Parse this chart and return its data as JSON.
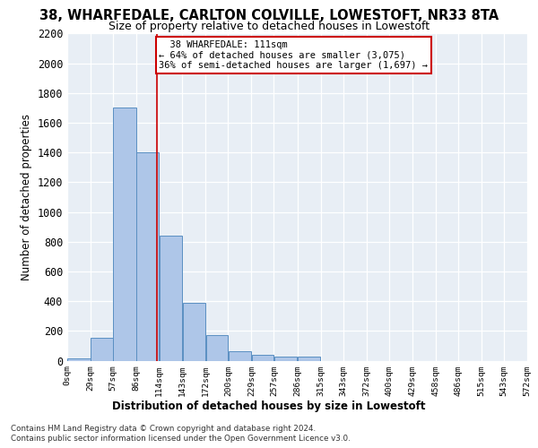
{
  "title_line1": "38, WHARFEDALE, CARLTON COLVILLE, LOWESTOFT, NR33 8TA",
  "title_line2": "Size of property relative to detached houses in Lowestoft",
  "xlabel": "Distribution of detached houses by size in Lowestoft",
  "ylabel": "Number of detached properties",
  "bin_edges": [
    0,
    29,
    57,
    86,
    114,
    143,
    172,
    200,
    229,
    257,
    286,
    315,
    343,
    372,
    400,
    429,
    458,
    486,
    515,
    543,
    572
  ],
  "bar_heights": [
    15,
    155,
    1700,
    1400,
    840,
    390,
    170,
    65,
    38,
    30,
    30,
    0,
    0,
    0,
    0,
    0,
    0,
    0,
    0,
    0
  ],
  "bar_color": "#aec6e8",
  "bar_edge_color": "#5a8fc2",
  "vline_x": 111,
  "vline_color": "#cc0000",
  "annotation_text": "  38 WHARFEDALE: 111sqm\n← 64% of detached houses are smaller (3,075)\n36% of semi-detached houses are larger (1,697) →",
  "annotation_box_color": "#ffffff",
  "annotation_box_edge": "#cc0000",
  "ylim": [
    0,
    2200
  ],
  "yticks": [
    0,
    200,
    400,
    600,
    800,
    1000,
    1200,
    1400,
    1600,
    1800,
    2000,
    2200
  ],
  "bg_color": "#e8eef5",
  "footer_line1": "Contains HM Land Registry data © Crown copyright and database right 2024.",
  "footer_line2": "Contains public sector information licensed under the Open Government Licence v3.0."
}
